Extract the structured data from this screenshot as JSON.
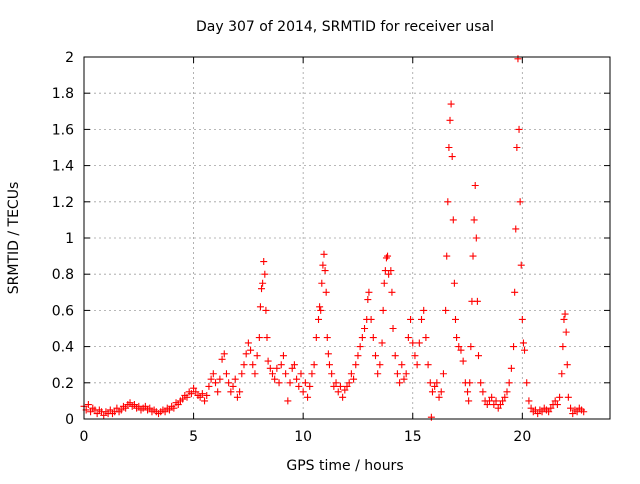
{
  "chart_data": {
    "type": "scatter",
    "title": "Day 307 of 2014, SRMTID for receiver usal",
    "xlabel": "GPS time / hours",
    "ylabel": "SRMTID / TECUs",
    "xlim": [
      0,
      24
    ],
    "ylim": [
      0,
      2
    ],
    "x_ticks": [
      "0",
      "5",
      "10",
      "15",
      "20"
    ],
    "y_ticks": [
      "0",
      "0.2",
      "0.4",
      "0.6",
      "0.8",
      "1",
      "1.2",
      "1.4",
      "1.6",
      "1.8",
      "2"
    ],
    "grid": true,
    "marker": "+",
    "colors": {
      "series": "#ff0000",
      "grid": "#a0a0a0",
      "axis": "#000000"
    },
    "series": [
      {
        "name": "SRMTID",
        "points": [
          [
            0.0,
            0.07
          ],
          [
            0.1,
            0.05
          ],
          [
            0.2,
            0.08
          ],
          [
            0.3,
            0.04
          ],
          [
            0.4,
            0.06
          ],
          [
            0.5,
            0.05
          ],
          [
            0.6,
            0.03
          ],
          [
            0.7,
            0.05
          ],
          [
            0.8,
            0.04
          ],
          [
            0.9,
            0.02
          ],
          [
            1.0,
            0.04
          ],
          [
            1.1,
            0.03
          ],
          [
            1.2,
            0.05
          ],
          [
            1.3,
            0.03
          ],
          [
            1.4,
            0.04
          ],
          [
            1.5,
            0.06
          ],
          [
            1.6,
            0.04
          ],
          [
            1.7,
            0.05
          ],
          [
            1.8,
            0.07
          ],
          [
            1.9,
            0.06
          ],
          [
            2.0,
            0.08
          ],
          [
            2.1,
            0.09
          ],
          [
            2.2,
            0.07
          ],
          [
            2.3,
            0.08
          ],
          [
            2.4,
            0.06
          ],
          [
            2.5,
            0.07
          ],
          [
            2.6,
            0.05
          ],
          [
            2.7,
            0.06
          ],
          [
            2.8,
            0.07
          ],
          [
            2.9,
            0.05
          ],
          [
            3.0,
            0.06
          ],
          [
            3.1,
            0.04
          ],
          [
            3.2,
            0.05
          ],
          [
            3.3,
            0.04
          ],
          [
            3.4,
            0.03
          ],
          [
            3.5,
            0.04
          ],
          [
            3.6,
            0.05
          ],
          [
            3.7,
            0.04
          ],
          [
            3.8,
            0.06
          ],
          [
            3.9,
            0.05
          ],
          [
            4.0,
            0.07
          ],
          [
            4.1,
            0.06
          ],
          [
            4.2,
            0.09
          ],
          [
            4.3,
            0.08
          ],
          [
            4.4,
            0.1
          ],
          [
            4.5,
            0.11
          ],
          [
            4.6,
            0.13
          ],
          [
            4.7,
            0.12
          ],
          [
            4.8,
            0.15
          ],
          [
            4.9,
            0.14
          ],
          [
            5.0,
            0.17
          ],
          [
            5.1,
            0.15
          ],
          [
            5.2,
            0.13
          ],
          [
            5.3,
            0.12
          ],
          [
            5.4,
            0.14
          ],
          [
            5.5,
            0.1
          ],
          [
            5.6,
            0.13
          ],
          [
            5.7,
            0.18
          ],
          [
            5.8,
            0.22
          ],
          [
            5.9,
            0.25
          ],
          [
            6.0,
            0.2
          ],
          [
            6.1,
            0.15
          ],
          [
            6.2,
            0.22
          ],
          [
            6.3,
            0.33
          ],
          [
            6.4,
            0.36
          ],
          [
            6.5,
            0.25
          ],
          [
            6.6,
            0.2
          ],
          [
            6.7,
            0.15
          ],
          [
            6.8,
            0.18
          ],
          [
            6.9,
            0.22
          ],
          [
            7.0,
            0.12
          ],
          [
            7.1,
            0.15
          ],
          [
            7.2,
            0.25
          ],
          [
            7.3,
            0.3
          ],
          [
            7.4,
            0.36
          ],
          [
            7.5,
            0.42
          ],
          [
            7.6,
            0.38
          ],
          [
            7.7,
            0.3
          ],
          [
            7.8,
            0.25
          ],
          [
            7.9,
            0.35
          ],
          [
            8.0,
            0.45
          ],
          [
            8.05,
            0.62
          ],
          [
            8.1,
            0.72
          ],
          [
            8.15,
            0.75
          ],
          [
            8.2,
            0.87
          ],
          [
            8.25,
            0.8
          ],
          [
            8.3,
            0.6
          ],
          [
            8.35,
            0.45
          ],
          [
            8.4,
            0.32
          ],
          [
            8.5,
            0.28
          ],
          [
            8.6,
            0.25
          ],
          [
            8.7,
            0.22
          ],
          [
            8.8,
            0.28
          ],
          [
            8.9,
            0.2
          ],
          [
            9.0,
            0.3
          ],
          [
            9.1,
            0.35
          ],
          [
            9.2,
            0.25
          ],
          [
            9.3,
            0.1
          ],
          [
            9.4,
            0.2
          ],
          [
            9.5,
            0.28
          ],
          [
            9.6,
            0.3
          ],
          [
            9.7,
            0.22
          ],
          [
            9.8,
            0.18
          ],
          [
            9.9,
            0.25
          ],
          [
            10.0,
            0.15
          ],
          [
            10.1,
            0.2
          ],
          [
            10.2,
            0.12
          ],
          [
            10.3,
            0.18
          ],
          [
            10.4,
            0.25
          ],
          [
            10.5,
            0.3
          ],
          [
            10.6,
            0.45
          ],
          [
            10.7,
            0.55
          ],
          [
            10.75,
            0.62
          ],
          [
            10.8,
            0.6
          ],
          [
            10.85,
            0.75
          ],
          [
            10.9,
            0.85
          ],
          [
            10.95,
            0.91
          ],
          [
            11.0,
            0.82
          ],
          [
            11.05,
            0.7
          ],
          [
            11.1,
            0.45
          ],
          [
            11.15,
            0.36
          ],
          [
            11.2,
            0.3
          ],
          [
            11.3,
            0.25
          ],
          [
            11.4,
            0.18
          ],
          [
            11.5,
            0.2
          ],
          [
            11.6,
            0.15
          ],
          [
            11.7,
            0.18
          ],
          [
            11.8,
            0.12
          ],
          [
            11.9,
            0.16
          ],
          [
            12.0,
            0.18
          ],
          [
            12.1,
            0.2
          ],
          [
            12.2,
            0.25
          ],
          [
            12.3,
            0.22
          ],
          [
            12.4,
            0.3
          ],
          [
            12.5,
            0.35
          ],
          [
            12.6,
            0.4
          ],
          [
            12.7,
            0.45
          ],
          [
            12.8,
            0.5
          ],
          [
            12.9,
            0.55
          ],
          [
            12.95,
            0.66
          ],
          [
            13.0,
            0.7
          ],
          [
            13.1,
            0.55
          ],
          [
            13.2,
            0.45
          ],
          [
            13.3,
            0.35
          ],
          [
            13.4,
            0.25
          ],
          [
            13.5,
            0.3
          ],
          [
            13.6,
            0.42
          ],
          [
            13.65,
            0.6
          ],
          [
            13.7,
            0.75
          ],
          [
            13.75,
            0.82
          ],
          [
            13.8,
            0.89
          ],
          [
            13.85,
            0.9
          ],
          [
            13.9,
            0.8
          ],
          [
            14.0,
            0.82
          ],
          [
            14.05,
            0.7
          ],
          [
            14.1,
            0.5
          ],
          [
            14.2,
            0.35
          ],
          [
            14.3,
            0.25
          ],
          [
            14.4,
            0.2
          ],
          [
            14.5,
            0.3
          ],
          [
            14.6,
            0.22
          ],
          [
            14.7,
            0.25
          ],
          [
            14.8,
            0.45
          ],
          [
            14.9,
            0.55
          ],
          [
            15.0,
            0.42
          ],
          [
            15.1,
            0.35
          ],
          [
            15.2,
            0.3
          ],
          [
            15.3,
            0.42
          ],
          [
            15.4,
            0.55
          ],
          [
            15.5,
            0.6
          ],
          [
            15.6,
            0.45
          ],
          [
            15.7,
            0.3
          ],
          [
            15.8,
            0.2
          ],
          [
            15.85,
            0.01
          ],
          [
            15.9,
            0.15
          ],
          [
            16.0,
            0.18
          ],
          [
            16.1,
            0.2
          ],
          [
            16.2,
            0.12
          ],
          [
            16.3,
            0.15
          ],
          [
            16.4,
            0.25
          ],
          [
            16.5,
            0.6
          ],
          [
            16.55,
            0.9
          ],
          [
            16.6,
            1.2
          ],
          [
            16.65,
            1.5
          ],
          [
            16.7,
            1.65
          ],
          [
            16.75,
            1.74
          ],
          [
            16.8,
            1.45
          ],
          [
            16.85,
            1.1
          ],
          [
            16.9,
            0.75
          ],
          [
            16.95,
            0.55
          ],
          [
            17.0,
            0.45
          ],
          [
            17.1,
            0.4
          ],
          [
            17.2,
            0.38
          ],
          [
            17.3,
            0.32
          ],
          [
            17.4,
            0.2
          ],
          [
            17.5,
            0.15
          ],
          [
            17.55,
            0.1
          ],
          [
            17.6,
            0.2
          ],
          [
            17.65,
            0.4
          ],
          [
            17.7,
            0.65
          ],
          [
            17.75,
            0.9
          ],
          [
            17.8,
            1.1
          ],
          [
            17.85,
            1.29
          ],
          [
            17.9,
            1.0
          ],
          [
            17.95,
            0.65
          ],
          [
            18.0,
            0.35
          ],
          [
            18.1,
            0.2
          ],
          [
            18.2,
            0.15
          ],
          [
            18.3,
            0.1
          ],
          [
            18.4,
            0.08
          ],
          [
            18.5,
            0.1
          ],
          [
            18.6,
            0.12
          ],
          [
            18.7,
            0.08
          ],
          [
            18.8,
            0.1
          ],
          [
            18.9,
            0.06
          ],
          [
            19.0,
            0.08
          ],
          [
            19.1,
            0.1
          ],
          [
            19.2,
            0.12
          ],
          [
            19.3,
            0.15
          ],
          [
            19.4,
            0.2
          ],
          [
            19.5,
            0.28
          ],
          [
            19.6,
            0.4
          ],
          [
            19.65,
            0.7
          ],
          [
            19.7,
            1.05
          ],
          [
            19.75,
            1.5
          ],
          [
            19.8,
            1.99
          ],
          [
            19.85,
            1.6
          ],
          [
            19.9,
            1.2
          ],
          [
            19.95,
            0.85
          ],
          [
            20.0,
            0.55
          ],
          [
            20.05,
            0.42
          ],
          [
            20.1,
            0.38
          ],
          [
            20.2,
            0.2
          ],
          [
            20.3,
            0.1
          ],
          [
            20.4,
            0.06
          ],
          [
            20.5,
            0.04
          ],
          [
            20.6,
            0.05
          ],
          [
            20.7,
            0.03
          ],
          [
            20.8,
            0.05
          ],
          [
            20.9,
            0.04
          ],
          [
            21.0,
            0.06
          ],
          [
            21.1,
            0.05
          ],
          [
            21.2,
            0.04
          ],
          [
            21.3,
            0.06
          ],
          [
            21.4,
            0.08
          ],
          [
            21.5,
            0.1
          ],
          [
            21.6,
            0.08
          ],
          [
            21.7,
            0.12
          ],
          [
            21.8,
            0.25
          ],
          [
            21.85,
            0.4
          ],
          [
            21.9,
            0.55
          ],
          [
            21.95,
            0.58
          ],
          [
            22.0,
            0.48
          ],
          [
            22.05,
            0.3
          ],
          [
            22.1,
            0.12
          ],
          [
            22.2,
            0.06
          ],
          [
            22.3,
            0.03
          ],
          [
            22.4,
            0.05
          ],
          [
            22.5,
            0.04
          ],
          [
            22.6,
            0.06
          ],
          [
            22.7,
            0.05
          ],
          [
            22.8,
            0.04
          ]
        ]
      }
    ]
  }
}
